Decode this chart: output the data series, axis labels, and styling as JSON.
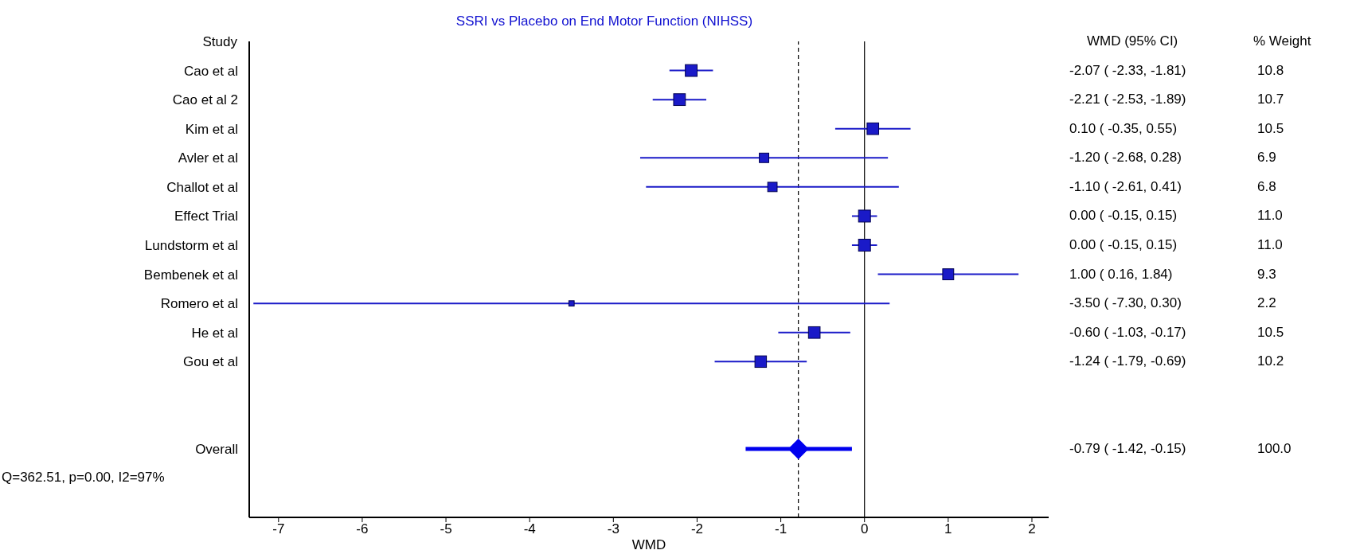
{
  "chart_data": [
    {
      "type": "bubble",
      "title": "SSRI vs Placebo on End Motor Function (NIHSS)",
      "xlabel": "WMD",
      "categories": [
        "Cao et al",
        "Cao et al 2",
        "Kim et al",
        "Avler et al",
        "Challot et al",
        "Effect Trial",
        "Lundstorm et al",
        "Bembenek et al",
        "Romero et al",
        "He et al",
        "Gou et al",
        null,
        null,
        "Overall"
      ],
      "orientation": "horizontal",
      "series": [
        {
          "marker": "square",
          "color": "#1a1ac8",
          "values": [
            -2.07,
            -2.21,
            0.1,
            -1.2,
            -1.1,
            0.0,
            0.0,
            1.0,
            -3.5,
            -0.6,
            -1.24,
            null,
            null,
            null
          ],
          "errors": [
            [
              -2.33,
              -1.81
            ],
            [
              -2.53,
              -1.89
            ],
            [
              -0.35,
              0.55
            ],
            [
              -2.68,
              0.28
            ],
            [
              -2.61,
              0.41
            ],
            [
              -0.15,
              0.15
            ],
            [
              -0.15,
              0.15
            ],
            [
              0.16,
              1.84
            ],
            [
              -7.3,
              0.3
            ],
            [
              -1.03,
              -0.17
            ],
            [
              -1.79,
              -0.69
            ],
            null,
            null,
            null
          ],
          "sizes": [
            0.98,
            0.97,
            0.95,
            0.63,
            0.62,
            1,
            1,
            0.85,
            0.2,
            0.95,
            0.93,
            null,
            null,
            null
          ]
        },
        {
          "type": "scatter",
          "marker": "diamond",
          "color": "#0000ee",
          "values": [
            null,
            null,
            null,
            null,
            null,
            null,
            null,
            null,
            null,
            null,
            null,
            null,
            null,
            -0.79
          ],
          "errors": [
            null,
            null,
            null,
            null,
            null,
            null,
            null,
            null,
            null,
            null,
            null,
            null,
            null,
            [
              -1.42,
              -0.15
            ]
          ]
        }
      ],
      "xlim": [
        -7.35,
        2.2
      ],
      "xticks": [
        -7,
        -6,
        -5,
        -4,
        -3,
        -2,
        -1,
        0,
        1,
        2
      ],
      "ref_lines": [
        {
          "axis": "x",
          "value": -0.79,
          "line_style": "dashed",
          "color": "#000000"
        },
        {
          "axis": "x",
          "value": 0,
          "line_style": "solid",
          "color": "#000000"
        }
      ],
      "annotations": [
        "Study",
        "Q=362.51, p=0.00, I2=97%"
      ]
    },
    {
      "type": "other",
      "annotations": [
        "WMD (95% CI)",
        "% Weight",
        "-2.07 ( -2.33, -1.81)",
        "10.8",
        "-2.21 ( -2.53, -1.89)",
        "10.7",
        "0.10 ( -0.35, 0.55)",
        "10.5",
        "-1.20 ( -2.68, 0.28)",
        "6.9",
        "-1.10 ( -2.61, 0.41)",
        "6.8",
        "0.00 ( -0.15, 0.15)",
        "11.0",
        "0.00 ( -0.15, 0.15)",
        "11.0",
        "1.00 ( 0.16, 1.84)",
        "9.3",
        "-3.50 ( -7.30, 0.30)",
        "2.2",
        "-0.60 ( -1.03, -0.17)",
        "10.5",
        "-1.24 ( -1.79, -0.69)",
        "10.2",
        "-0.79 ( -1.42, -0.15)",
        "100.0"
      ]
    }
  ]
}
